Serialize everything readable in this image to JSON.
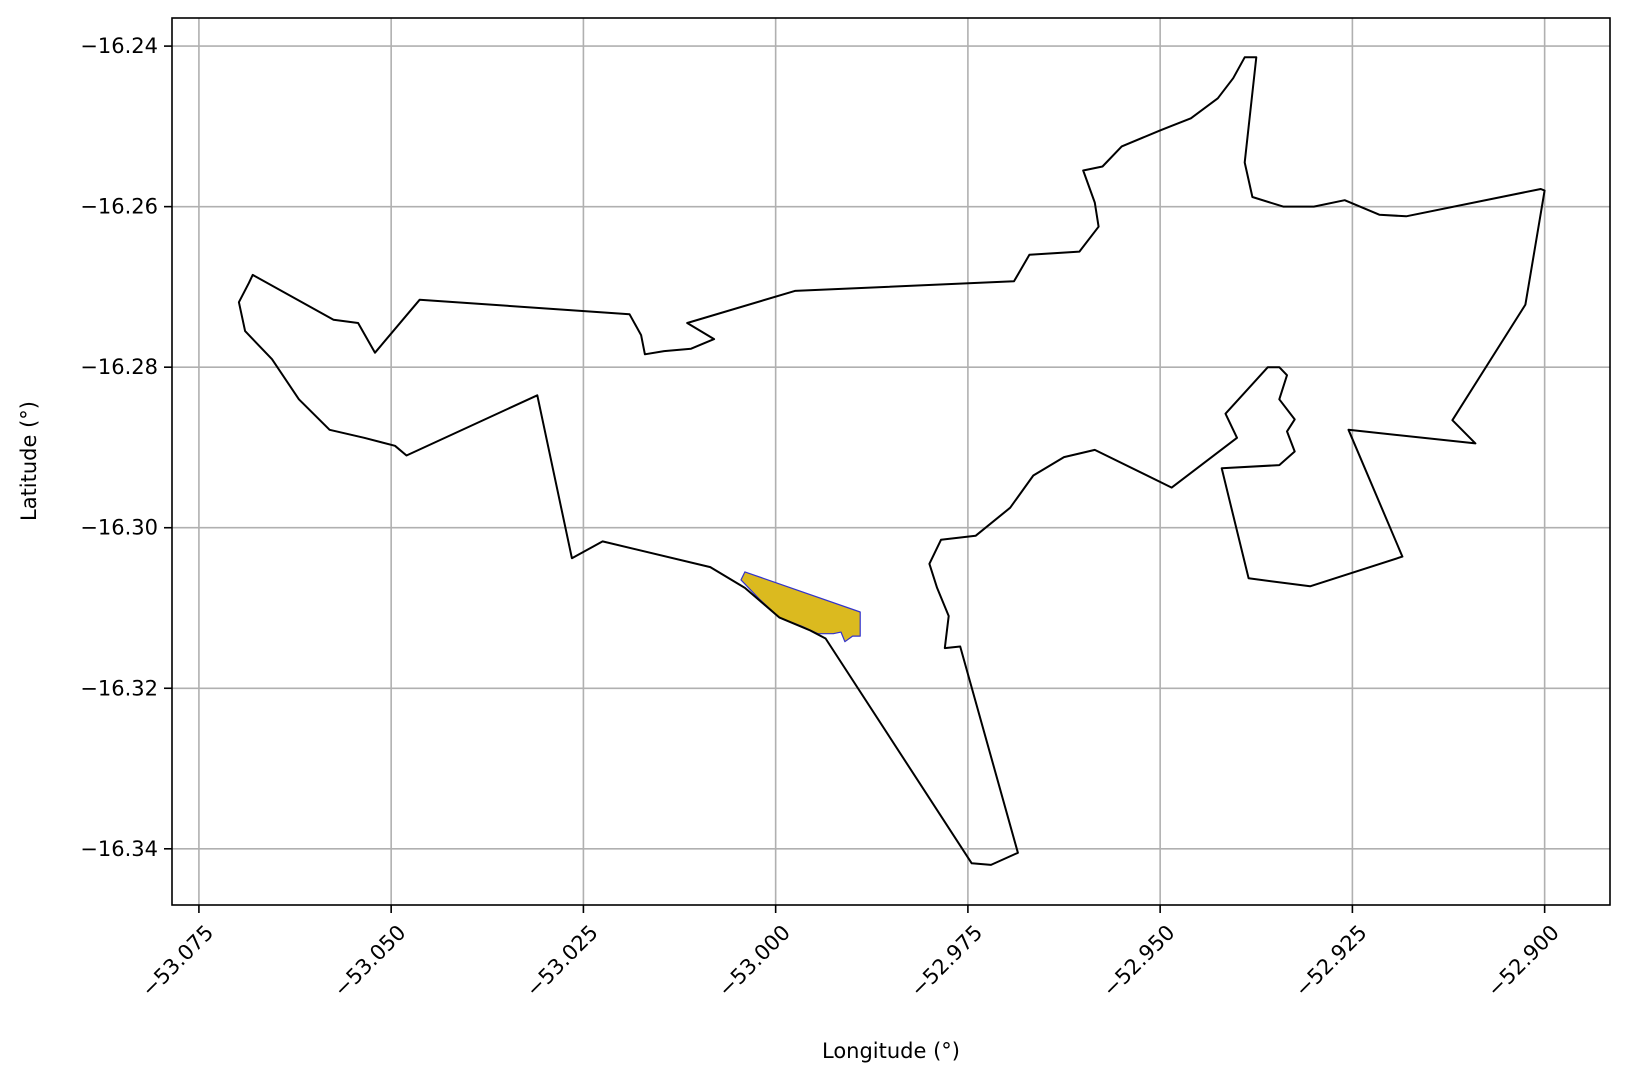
{
  "chart_data": {
    "type": "map",
    "xlabel": "Longitude (°)",
    "ylabel": "Latitude (°)",
    "xlim": [
      -53.0785,
      -52.8915
    ],
    "ylim": [
      -16.347,
      -16.2365
    ],
    "grid": true,
    "x_ticks": [
      -53.075,
      -53.05,
      -53.025,
      -53.0,
      -52.975,
      -52.95,
      -52.925,
      -52.9
    ],
    "x_tick_labels": [
      "−53.075",
      "−53.050",
      "−53.025",
      "−53.000",
      "−52.975",
      "−52.950",
      "−52.925",
      "−52.900"
    ],
    "y_ticks": [
      -16.24,
      -16.26,
      -16.28,
      -16.3,
      -16.32,
      -16.34
    ],
    "y_tick_labels": [
      "−16.24",
      "−16.26",
      "−16.28",
      "−16.30",
      "−16.32",
      "−16.34"
    ],
    "colors": {
      "boundary": "#000000",
      "highlight_fill": "#dbba1f",
      "highlight_edge": "#3333cc",
      "grid": "#b0b0b0"
    },
    "boundary": [
      [
        -53.0698,
        -16.2719
      ],
      [
        -53.0685,
        -16.2695
      ],
      [
        -53.068,
        -16.2685
      ],
      [
        -53.0575,
        -16.2741
      ],
      [
        -53.0543,
        -16.2745
      ],
      [
        -53.0521,
        -16.2782
      ],
      [
        -53.0463,
        -16.2716
      ],
      [
        -53.019,
        -16.2734
      ],
      [
        -53.0175,
        -16.276
      ],
      [
        -53.017,
        -16.2784
      ],
      [
        -53.0145,
        -16.278
      ],
      [
        -53.011,
        -16.2777
      ],
      [
        -53.008,
        -16.2765
      ],
      [
        -53.0115,
        -16.2745
      ],
      [
        -52.9975,
        -16.2705
      ],
      [
        -52.969,
        -16.2693
      ],
      [
        -52.967,
        -16.266
      ],
      [
        -52.9605,
        -16.2656
      ],
      [
        -52.958,
        -16.2625
      ],
      [
        -52.9585,
        -16.2595
      ],
      [
        -52.96,
        -16.2555
      ],
      [
        -52.9575,
        -16.255
      ],
      [
        -52.955,
        -16.2525
      ],
      [
        -52.95,
        -16.2505
      ],
      [
        -52.946,
        -16.249
      ],
      [
        -52.9425,
        -16.2465
      ],
      [
        -52.9405,
        -16.244
      ],
      [
        -52.939,
        -16.2414
      ],
      [
        -52.9375,
        -16.2414
      ],
      [
        -52.939,
        -16.2545
      ],
      [
        -52.938,
        -16.2588
      ],
      [
        -52.934,
        -16.26
      ],
      [
        -52.93,
        -16.26
      ],
      [
        -52.926,
        -16.2592
      ],
      [
        -52.9215,
        -16.261
      ],
      [
        -52.918,
        -16.2612
      ],
      [
        -52.9005,
        -16.2578
      ],
      [
        -52.9,
        -16.258
      ],
      [
        -52.9025,
        -16.2722
      ],
      [
        -52.912,
        -16.2866
      ],
      [
        -52.909,
        -16.2895
      ],
      [
        -52.9255,
        -16.2878
      ],
      [
        -52.9185,
        -16.3036
      ],
      [
        -52.9305,
        -16.3073
      ],
      [
        -52.9385,
        -16.3063
      ],
      [
        -52.942,
        -16.2926
      ],
      [
        -52.9345,
        -16.2922
      ],
      [
        -52.9325,
        -16.2905
      ],
      [
        -52.9335,
        -16.288
      ],
      [
        -52.9325,
        -16.2865
      ],
      [
        -52.9345,
        -16.284
      ],
      [
        -52.9335,
        -16.281
      ],
      [
        -52.9345,
        -16.28
      ],
      [
        -52.936,
        -16.28
      ],
      [
        -52.9415,
        -16.2858
      ],
      [
        -52.94,
        -16.2888
      ],
      [
        -52.9485,
        -16.295
      ],
      [
        -52.9585,
        -16.2903
      ],
      [
        -52.9625,
        -16.2912
      ],
      [
        -52.9665,
        -16.2935
      ],
      [
        -52.9695,
        -16.2975
      ],
      [
        -52.974,
        -16.301
      ],
      [
        -52.9785,
        -16.3015
      ],
      [
        -52.98,
        -16.3045
      ],
      [
        -52.979,
        -16.3075
      ],
      [
        -52.9775,
        -16.311
      ],
      [
        -52.978,
        -16.315
      ],
      [
        -52.976,
        -16.3148
      ],
      [
        -52.9685,
        -16.3405
      ],
      [
        -52.972,
        -16.342
      ],
      [
        -52.9745,
        -16.3418
      ],
      [
        -52.9935,
        -16.3138
      ],
      [
        -52.9955,
        -16.3128
      ],
      [
        -52.9995,
        -16.3112
      ],
      [
        -53.004,
        -16.3075
      ],
      [
        -53.0085,
        -16.3049
      ],
      [
        -53.0225,
        -16.3017
      ],
      [
        -53.0265,
        -16.3038
      ],
      [
        -53.031,
        -16.2835
      ],
      [
        -53.048,
        -16.291
      ],
      [
        -53.0495,
        -16.2898
      ],
      [
        -53.0535,
        -16.2888
      ],
      [
        -53.058,
        -16.2878
      ],
      [
        -53.062,
        -16.284
      ],
      [
        -53.0655,
        -16.279
      ],
      [
        -53.069,
        -16.2755
      ],
      [
        -53.0698,
        -16.2719
      ]
    ],
    "highlight": [
      [
        -53.0045,
        -16.3065
      ],
      [
        -53.004,
        -16.3055
      ],
      [
        -52.989,
        -16.3105
      ],
      [
        -52.989,
        -16.3135
      ],
      [
        -52.99,
        -16.3135
      ],
      [
        -52.991,
        -16.3142
      ],
      [
        -52.9915,
        -16.313
      ],
      [
        -52.9925,
        -16.3132
      ],
      [
        -52.9945,
        -16.3132
      ],
      [
        -52.9965,
        -16.3123
      ],
      [
        -52.9995,
        -16.3112
      ],
      [
        -53.002,
        -16.309
      ],
      [
        -53.0045,
        -16.3065
      ]
    ]
  }
}
